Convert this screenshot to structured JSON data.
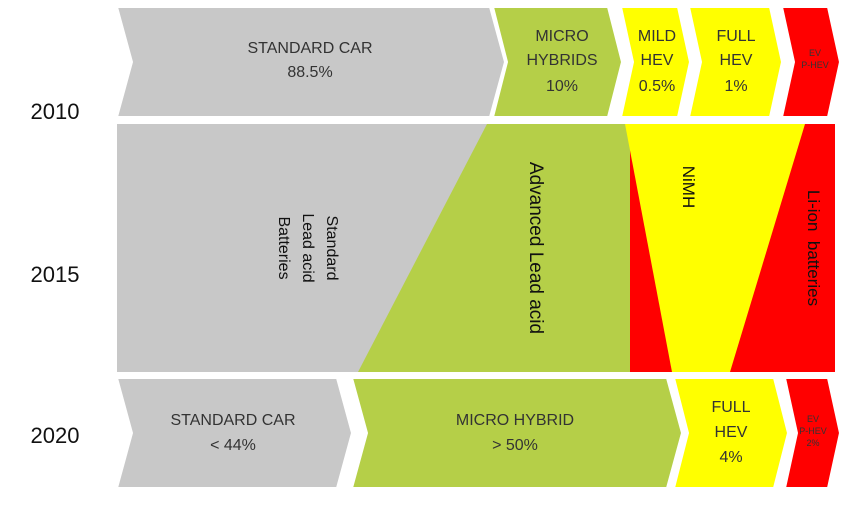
{
  "years": [
    "2010",
    "2015",
    "2020"
  ],
  "colors": {
    "standard": "#c8c8c8",
    "micro": "#b5cf48",
    "mild": "#ffff00",
    "full": "#ffff00",
    "ev": "#ff0000",
    "outline": "#ffffff"
  },
  "row2010": {
    "standard_car": {
      "line1": "STANDARD CAR",
      "line2": "88.5%"
    },
    "micro_hybrids": {
      "line1": "MICRO",
      "line2": "HYBRIDS",
      "line3": "10%"
    },
    "mild_hev": {
      "line1": "MILD",
      "line2": "HEV",
      "line3": "0.5%"
    },
    "full_hev": {
      "line1": "FULL",
      "line2": "HEV",
      "line3": "1%"
    },
    "ev": {
      "line1": "EV",
      "line2": "P-HEV"
    }
  },
  "row2015": {
    "standard_lead_acid": {
      "line1": "Standard",
      "line2": "Lead acid",
      "line3": "Batteries"
    },
    "advanced_lead_acid": "Advanced Lead acid",
    "nimh": "NiMH",
    "li_ion": "Li-ion  batteries"
  },
  "row2020": {
    "standard_car": {
      "line1": "STANDARD CAR",
      "line2": "< 44%"
    },
    "micro_hybrid": {
      "line1": "MICRO HYBRID",
      "line2": "> 50%"
    },
    "full_hev": {
      "line1": "FULL",
      "line2": "HEV",
      "line3": "4%"
    },
    "ev": {
      "line1": "EV",
      "line2": "P-HEV",
      "line3": "2%"
    }
  }
}
